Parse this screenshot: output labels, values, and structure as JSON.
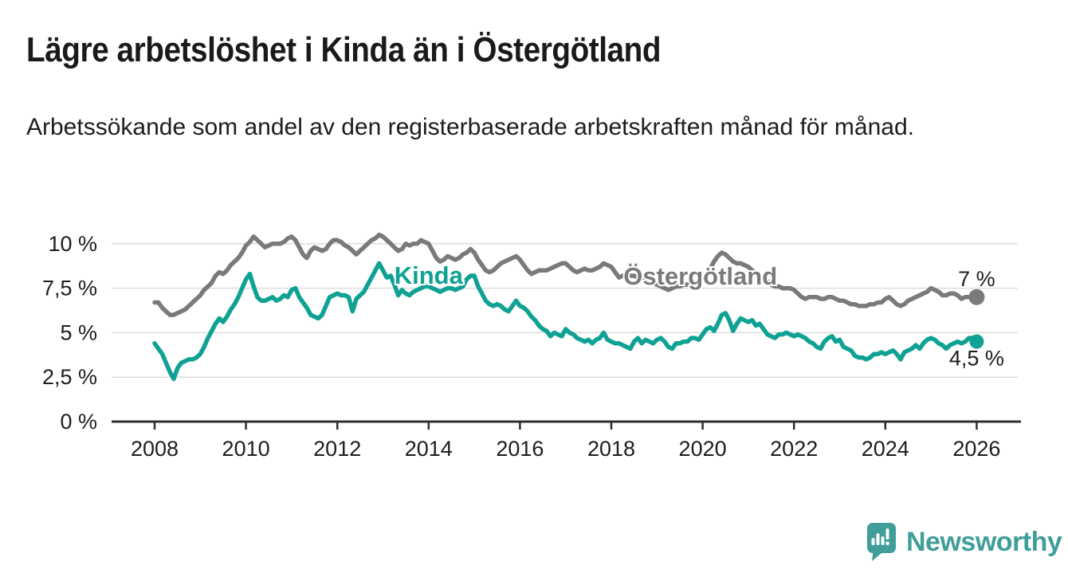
{
  "header": {
    "title": "Lägre arbetslöshet i Kinda än i Östergötland",
    "subtitle": "Arbetssökande som andel av den registerbaserade arbetskraften månad för månad."
  },
  "branding": {
    "logo_text": "Newsworthy",
    "logo_color": "#3f9e99"
  },
  "chart_data": {
    "type": "line",
    "title": "Lägre arbetslöshet i Kinda än i Östergötland",
    "subtitle": "Arbetssökande som andel av den registerbaserade arbetskraften månad för månad.",
    "grid": "horizontal",
    "legend_position": "inline-labels",
    "x_start_year": 2008,
    "x_step_months": 1,
    "x_end_year": 2026,
    "x_ticks": [
      2008,
      2010,
      2012,
      2014,
      2016,
      2018,
      2020,
      2022,
      2024,
      2026
    ],
    "y_tick_values": [
      0,
      2.5,
      5,
      7.5,
      10
    ],
    "y_tick_labels": [
      "0 %",
      "2,5 %",
      "5 %",
      "7,5 %",
      "10 %"
    ],
    "ylim": [
      0,
      11.2
    ],
    "axis_color": "#2e2e2e",
    "grid_color": "#dcdcdc",
    "text_color": "#1d1d1b",
    "series": [
      {
        "name": "Östergötland",
        "color": "#7a7a7a",
        "end_label": "7 %",
        "end_value": 7,
        "end_label_side": "above",
        "end_dot_r": 10,
        "label_x": 2019.95,
        "label_y": 7.7,
        "values": [
          6.7,
          6.7,
          6.4,
          6.2,
          6.0,
          6.0,
          6.1,
          6.2,
          6.3,
          6.5,
          6.7,
          6.9,
          7.1,
          7.4,
          7.6,
          7.8,
          8.2,
          8.4,
          8.3,
          8.5,
          8.8,
          9.0,
          9.2,
          9.5,
          9.9,
          10.1,
          10.4,
          10.2,
          10.0,
          9.8,
          9.9,
          10.0,
          10.0,
          10.0,
          10.1,
          10.3,
          10.4,
          10.2,
          9.8,
          9.4,
          9.2,
          9.6,
          9.8,
          9.7,
          9.6,
          9.7,
          10.0,
          10.2,
          10.2,
          10.1,
          9.9,
          9.8,
          9.6,
          9.4,
          9.6,
          9.8,
          10.0,
          10.2,
          10.3,
          10.5,
          10.4,
          10.2,
          10.0,
          9.8,
          9.6,
          9.7,
          10.0,
          9.9,
          10.0,
          10.0,
          10.2,
          10.1,
          10.0,
          9.6,
          9.2,
          9.0,
          9.1,
          9.3,
          9.2,
          9.1,
          9.2,
          9.4,
          9.5,
          9.7,
          9.5,
          9.1,
          8.8,
          8.5,
          8.4,
          8.5,
          8.7,
          8.9,
          9.0,
          9.1,
          9.2,
          9.3,
          9.1,
          8.8,
          8.5,
          8.3,
          8.4,
          8.5,
          8.5,
          8.5,
          8.6,
          8.7,
          8.8,
          8.9,
          8.9,
          8.7,
          8.5,
          8.4,
          8.5,
          8.6,
          8.5,
          8.5,
          8.6,
          8.7,
          8.9,
          8.8,
          8.7,
          8.4,
          8.1,
          8.2,
          8.3,
          8.2,
          8.2,
          8.1,
          8.0,
          7.9,
          7.8,
          7.8,
          7.7,
          7.6,
          7.5,
          7.4,
          7.5,
          7.6,
          7.6,
          7.7,
          7.7,
          7.8,
          7.8,
          7.9,
          8.0,
          8.2,
          8.6,
          9.0,
          9.3,
          9.5,
          9.4,
          9.2,
          9.0,
          8.9,
          8.9,
          8.8,
          8.7,
          8.5,
          8.3,
          8.2,
          8.0,
          7.9,
          7.7,
          7.6,
          7.6,
          7.5,
          7.5,
          7.5,
          7.4,
          7.2,
          7.0,
          6.9,
          7.0,
          7.0,
          7.0,
          6.9,
          6.9,
          7.0,
          7.0,
          6.9,
          6.8,
          6.8,
          6.7,
          6.6,
          6.6,
          6.5,
          6.5,
          6.5,
          6.6,
          6.6,
          6.7,
          6.7,
          6.9,
          7.0,
          6.8,
          6.6,
          6.5,
          6.6,
          6.8,
          6.9,
          7.0,
          7.1,
          7.2,
          7.3,
          7.5,
          7.4,
          7.3,
          7.1,
          7.1,
          7.2,
          7.2,
          7.1,
          6.9,
          7.0,
          7.0,
          7.1,
          7.0
        ]
      },
      {
        "name": "Kinda",
        "color": "#0fa294",
        "end_label": "4,5 %",
        "end_value": 4.5,
        "end_label_side": "below",
        "end_dot_r": 9,
        "label_x": 2014.0,
        "label_y": 7.75,
        "values": [
          4.4,
          4.1,
          3.8,
          3.3,
          2.8,
          2.4,
          3.0,
          3.3,
          3.4,
          3.5,
          3.5,
          3.6,
          3.8,
          4.2,
          4.7,
          5.1,
          5.5,
          5.8,
          5.6,
          5.9,
          6.3,
          6.6,
          7.0,
          7.5,
          8.0,
          8.3,
          7.6,
          7.0,
          6.8,
          6.8,
          6.9,
          7.0,
          6.8,
          6.9,
          7.1,
          7.0,
          7.4,
          7.5,
          7.0,
          6.7,
          6.4,
          6.0,
          5.9,
          5.8,
          6.0,
          6.5,
          7.0,
          7.1,
          7.2,
          7.1,
          7.1,
          7.0,
          6.2,
          6.9,
          7.1,
          7.3,
          7.7,
          8.1,
          8.5,
          8.9,
          8.5,
          8.1,
          8.2,
          7.7,
          7.1,
          7.4,
          7.2,
          7.1,
          7.3,
          7.4,
          7.5,
          7.6,
          7.6,
          7.5,
          7.4,
          7.3,
          7.4,
          7.5,
          7.5,
          7.4,
          7.5,
          7.6,
          8.0,
          8.2,
          8.2,
          7.6,
          7.2,
          6.8,
          6.6,
          6.5,
          6.6,
          6.5,
          6.3,
          6.2,
          6.5,
          6.8,
          6.5,
          6.4,
          6.2,
          5.9,
          5.7,
          5.4,
          5.2,
          5.1,
          4.8,
          5.0,
          4.9,
          4.8,
          5.2,
          5.0,
          4.9,
          4.7,
          4.6,
          4.5,
          4.6,
          4.4,
          4.6,
          4.7,
          5.0,
          4.6,
          4.5,
          4.4,
          4.4,
          4.3,
          4.2,
          4.1,
          4.5,
          4.7,
          4.4,
          4.6,
          4.5,
          4.4,
          4.6,
          4.7,
          4.5,
          4.2,
          4.1,
          4.4,
          4.4,
          4.5,
          4.5,
          4.7,
          4.7,
          4.6,
          4.9,
          5.2,
          5.3,
          5.1,
          5.5,
          6.0,
          6.1,
          5.7,
          5.1,
          5.5,
          5.8,
          5.7,
          5.6,
          5.7,
          5.4,
          5.5,
          5.2,
          4.9,
          4.8,
          4.7,
          4.9,
          4.9,
          5.0,
          4.9,
          4.8,
          4.9,
          4.8,
          4.7,
          4.5,
          4.4,
          4.2,
          4.1,
          4.5,
          4.7,
          4.8,
          4.5,
          4.6,
          4.2,
          4.1,
          4.0,
          3.7,
          3.6,
          3.6,
          3.5,
          3.6,
          3.8,
          3.8,
          3.9,
          3.8,
          3.9,
          4.0,
          3.8,
          3.5,
          3.9,
          4.0,
          4.1,
          4.3,
          4.1,
          4.4,
          4.6,
          4.7,
          4.6,
          4.4,
          4.3,
          4.1,
          4.3,
          4.4,
          4.5,
          4.4,
          4.5,
          4.7,
          4.7,
          4.5
        ]
      }
    ]
  }
}
